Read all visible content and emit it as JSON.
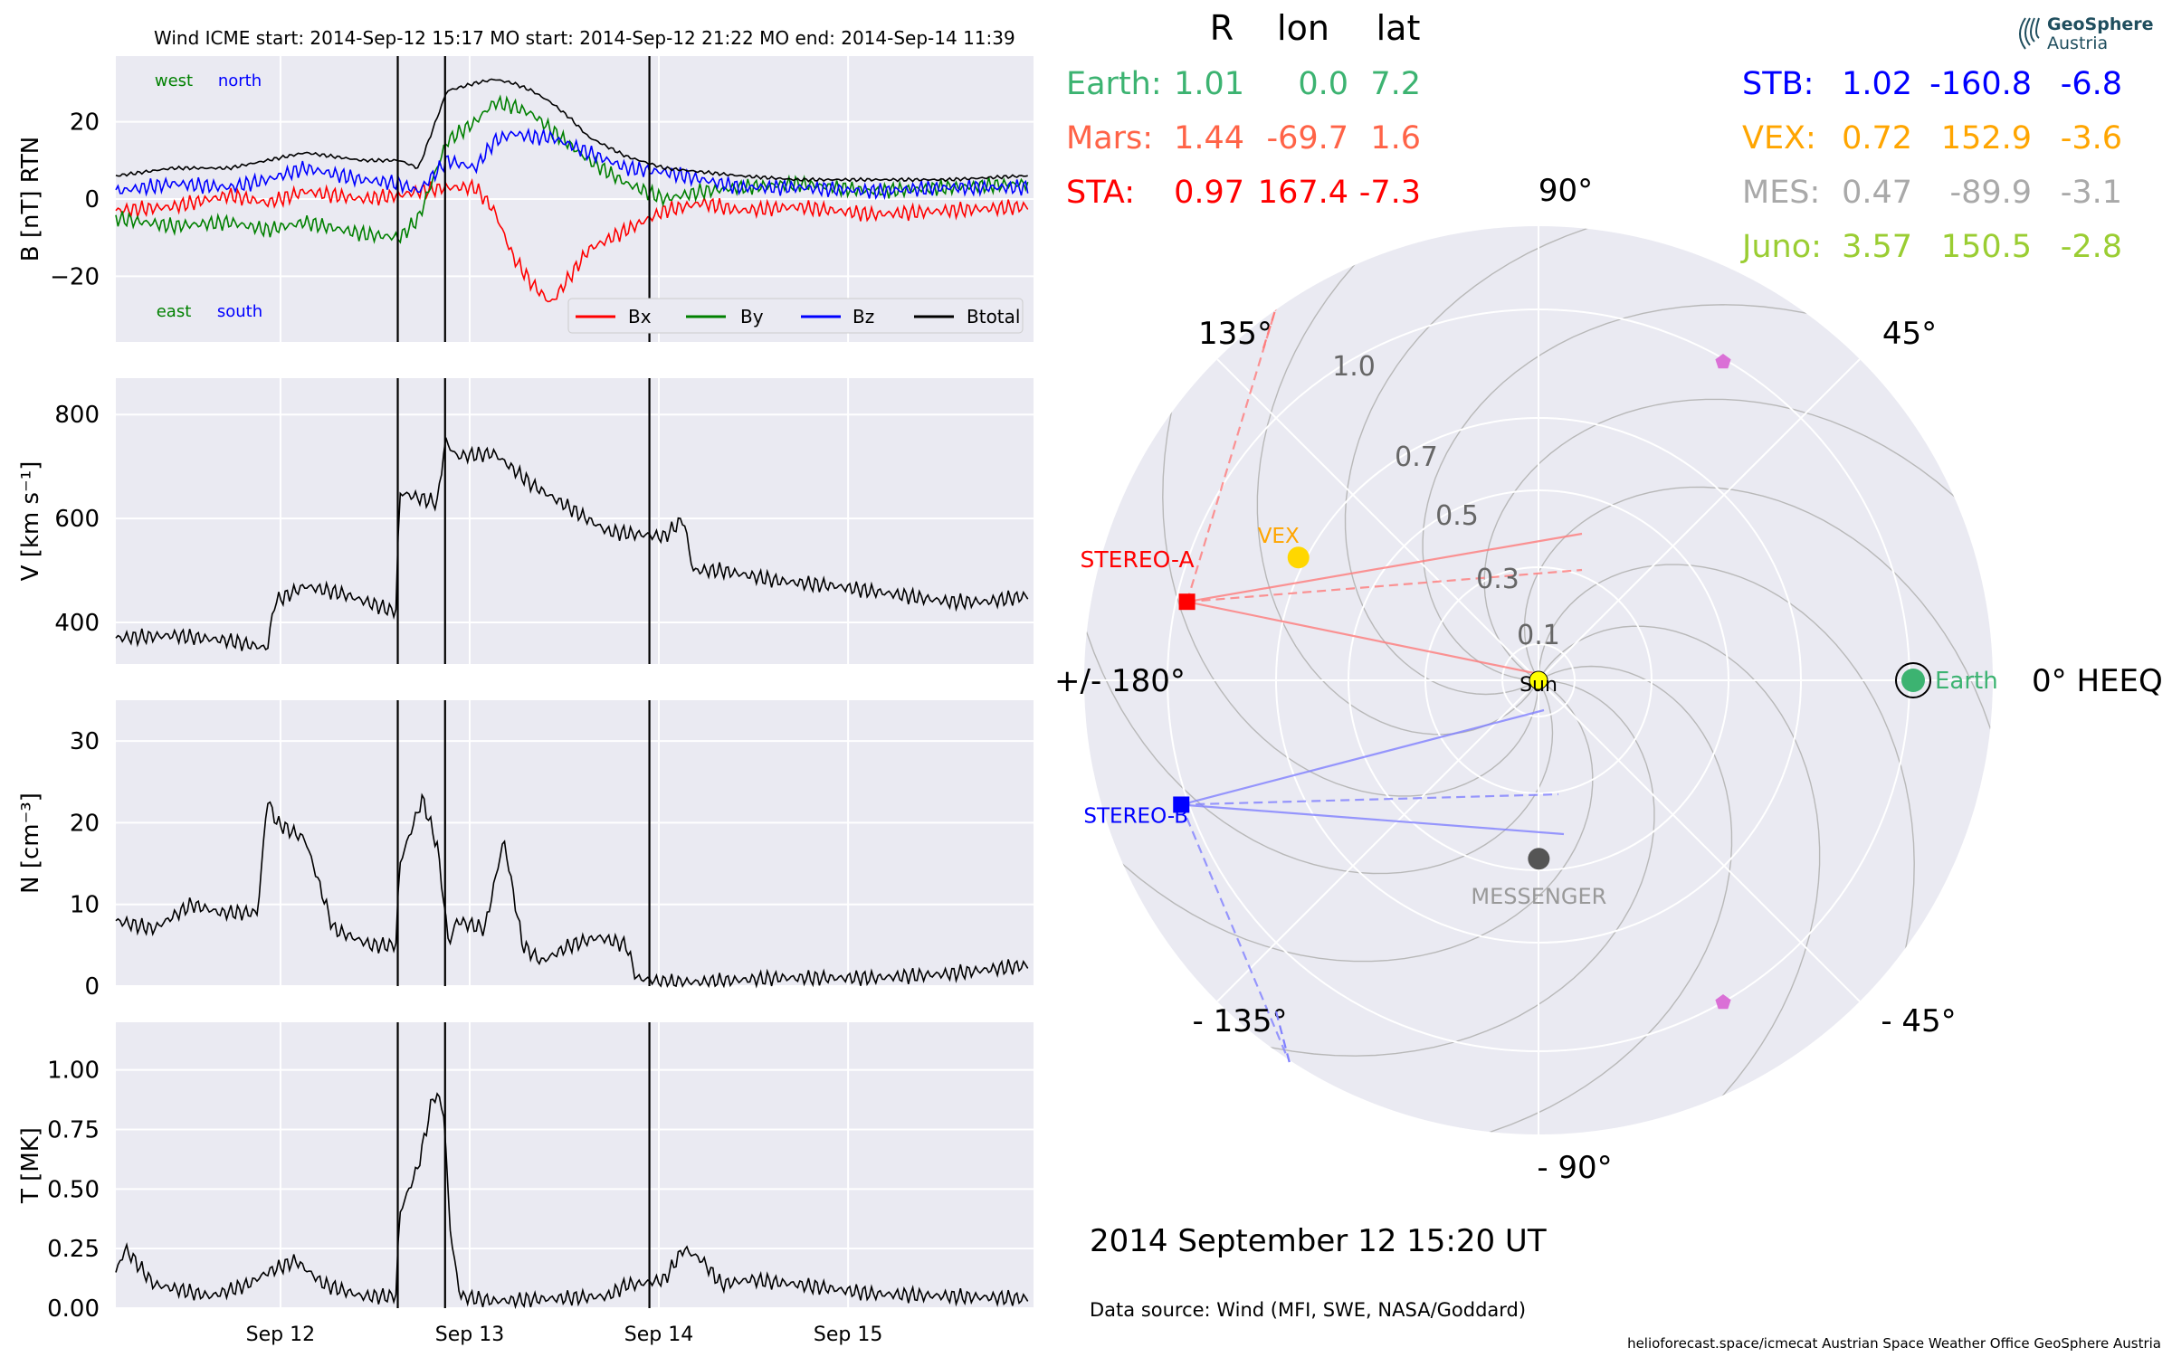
{
  "header": {
    "title": "Wind    ICME start: 2014-Sep-12 15:17   MO start: 2014-Sep-12 21:22   MO end: 2014-Sep-14 11:39"
  },
  "logo": {
    "line1": "GeoSphere",
    "line2": "Austria"
  },
  "footer": {
    "date": "2014 September 12  15:20 UT",
    "source": "Data source: Wind (MFI, SWE, NASA/Goddard)",
    "credits": "helioforecast.space/icmecat   Austrian Space Weather Office   GeoSphere Austria"
  },
  "colors": {
    "panel_bg": "#eaeaf2",
    "grid": "#ffffff",
    "bx": "#ff0000",
    "by": "#008000",
    "bz": "#0000ff",
    "earth": "#3cb371",
    "mars": "#ff6347",
    "sta": "#ff0000",
    "stb": "#0000ff",
    "vex": "#ffa500",
    "mes": "#a9a9a9",
    "juno": "#9acd32",
    "sun": "#ffff00"
  },
  "table": {
    "headers": [
      "R",
      "lon",
      "lat"
    ],
    "left": [
      {
        "name": "Earth:",
        "R": "1.01",
        "lon": "0.0",
        "lat": "7.2",
        "color": "#3cb371"
      },
      {
        "name": "Mars:",
        "R": "1.44",
        "lon": "-69.7",
        "lat": "1.6",
        "color": "#ff6347"
      },
      {
        "name": "STA:",
        "R": "0.97",
        "lon": "167.4",
        "lat": "-7.3",
        "color": "#ff0000"
      }
    ],
    "right": [
      {
        "name": "STB:",
        "R": "1.02",
        "lon": "-160.8",
        "lat": "-6.8",
        "color": "#0000ff"
      },
      {
        "name": "VEX:",
        "R": "0.72",
        "lon": "152.9",
        "lat": "-3.6",
        "color": "#ffa500"
      },
      {
        "name": "MES:",
        "R": "0.47",
        "lon": "-89.9",
        "lat": "-3.1",
        "color": "#a9a9a9"
      },
      {
        "name": "Juno:",
        "R": "3.57",
        "lon": "150.5",
        "lat": "-2.8",
        "color": "#9acd32"
      }
    ]
  },
  "chart_data": [
    {
      "type": "line",
      "ylabel": "B [nT] RTN",
      "ylim": [
        -37,
        37
      ],
      "yticks": [
        "20",
        "0",
        "−20"
      ],
      "xlim_days": [
        "2014-09-11 00:00",
        "2014-09-16 00:00"
      ],
      "xticks": [
        "Sep 12",
        "Sep 13",
        "Sep 14",
        "Sep 15"
      ],
      "event_lines": [
        "2014-09-12 15:17",
        "2014-09-12 21:22",
        "2014-09-14 11:39"
      ],
      "annotations": [
        "west",
        "north",
        "east",
        "south"
      ],
      "legend": [
        "Bx",
        "By",
        "Bz",
        "Btotal"
      ],
      "legend_position": "lower-right",
      "series": [
        {
          "name": "Bx",
          "x": [
            0,
            0.3,
            0.6,
            0.8,
            1.0,
            1.3,
            1.5,
            1.6,
            1.75,
            1.9,
            2.0,
            2.1,
            2.2,
            2.3,
            2.4,
            2.5,
            2.7,
            2.9,
            3.1,
            3.3,
            3.6,
            4.0,
            4.4,
            4.8
          ],
          "values": [
            -3,
            -2,
            1,
            -1,
            2,
            0,
            1,
            2,
            3,
            3,
            -3,
            -15,
            -22,
            -27,
            -20,
            -13,
            -8,
            -3,
            -1,
            -3,
            -2,
            -4,
            -3,
            -2
          ]
        },
        {
          "name": "By",
          "x": [
            0,
            0.3,
            0.6,
            0.8,
            1.0,
            1.3,
            1.5,
            1.6,
            1.75,
            1.9,
            2.0,
            2.1,
            2.2,
            2.3,
            2.4,
            2.5,
            2.7,
            2.9,
            3.1,
            3.3,
            3.6,
            4.0,
            4.4,
            4.8
          ],
          "values": [
            -5,
            -7,
            -6,
            -8,
            -6,
            -9,
            -10,
            -5,
            15,
            20,
            25,
            24,
            22,
            18,
            14,
            10,
            4,
            0,
            2,
            3,
            4,
            2,
            3,
            4
          ]
        },
        {
          "name": "Bz",
          "x": [
            0,
            0.3,
            0.6,
            0.8,
            1.0,
            1.3,
            1.5,
            1.6,
            1.75,
            1.9,
            2.0,
            2.1,
            2.2,
            2.3,
            2.4,
            2.5,
            2.7,
            2.9,
            3.1,
            3.3,
            3.6,
            4.0,
            4.4,
            4.8
          ],
          "values": [
            2,
            4,
            3,
            5,
            8,
            5,
            4,
            2,
            10,
            8,
            15,
            17,
            16,
            16,
            14,
            12,
            8,
            7,
            5,
            3,
            3,
            2,
            3,
            3
          ]
        },
        {
          "name": "Btotal",
          "x": [
            0,
            0.3,
            0.6,
            0.8,
            1.0,
            1.3,
            1.5,
            1.6,
            1.75,
            1.9,
            2.0,
            2.1,
            2.2,
            2.3,
            2.4,
            2.5,
            2.7,
            2.9,
            3.1,
            3.3,
            3.6,
            4.0,
            4.4,
            4.8
          ],
          "values": [
            6,
            8,
            8,
            10,
            12,
            10,
            10,
            8,
            28,
            30,
            31,
            30,
            28,
            25,
            21,
            16,
            11,
            8,
            7,
            6,
            5,
            5,
            5,
            6
          ]
        }
      ]
    },
    {
      "type": "line",
      "ylabel": "V [km s⁻¹]",
      "ylim": [
        320,
        870
      ],
      "yticks": [
        "800",
        "600",
        "400"
      ],
      "xticks": [
        "Sep 12",
        "Sep 13",
        "Sep 14",
        "Sep 15"
      ],
      "series": [
        {
          "name": "",
          "x": [
            0,
            0.3,
            0.6,
            0.8,
            0.84,
            1.0,
            1.2,
            1.4,
            1.48,
            1.5,
            1.7,
            1.74,
            1.8,
            2.0,
            2.2,
            2.4,
            2.6,
            2.9,
            3.0,
            3.05,
            3.2,
            3.5,
            3.8,
            4.1,
            4.4,
            4.6,
            4.8
          ],
          "values": [
            370,
            375,
            365,
            350,
            440,
            470,
            455,
            430,
            420,
            650,
            630,
            750,
            720,
            725,
            665,
            620,
            575,
            565,
            600,
            500,
            500,
            480,
            470,
            455,
            440,
            440,
            450
          ]
        }
      ]
    },
    {
      "type": "line",
      "ylabel": "N [cm⁻³]",
      "ylim": [
        0,
        35
      ],
      "yticks": [
        "30",
        "20",
        "10",
        "0"
      ],
      "xticks": [
        "Sep 12",
        "Sep 13",
        "Sep 14",
        "Sep 15"
      ],
      "series": [
        {
          "name": "",
          "x": [
            0,
            0.2,
            0.4,
            0.55,
            0.75,
            0.8,
            0.85,
            1.0,
            1.15,
            1.25,
            1.35,
            1.48,
            1.5,
            1.62,
            1.7,
            1.76,
            1.8,
            1.95,
            2.05,
            2.15,
            2.25,
            2.4,
            2.55,
            2.7,
            2.75,
            2.9,
            3.1,
            3.5,
            4.0,
            4.4,
            4.8
          ],
          "values": [
            8,
            7,
            10,
            9,
            9,
            23,
            20,
            18,
            7,
            6,
            5,
            5,
            15,
            23,
            17,
            5,
            8,
            7,
            18,
            5,
            3,
            5,
            6,
            5,
            1,
            0.5,
            0.5,
            1,
            1,
            1.5,
            2.5
          ]
        }
      ]
    },
    {
      "type": "line",
      "ylabel": "T [MK]",
      "ylim": [
        0,
        1.2
      ],
      "yticks": [
        "1.00",
        "0.75",
        "0.50",
        "0.25",
        "0.00"
      ],
      "xticks": [
        "Sep 12",
        "Sep 13",
        "Sep 14",
        "Sep 15"
      ],
      "series": [
        {
          "name": "",
          "x": [
            0,
            0.05,
            0.2,
            0.5,
            0.7,
            0.8,
            0.95,
            1.1,
            1.3,
            1.48,
            1.5,
            1.6,
            1.68,
            1.73,
            1.77,
            1.82,
            2.0,
            2.3,
            2.6,
            2.7,
            2.75,
            2.9,
            3.0,
            3.1,
            3.2,
            3.35,
            3.6,
            4.0,
            4.4,
            4.8
          ],
          "values": [
            0.15,
            0.25,
            0.1,
            0.05,
            0.1,
            0.15,
            0.2,
            0.1,
            0.05,
            0.05,
            0.4,
            0.6,
            0.9,
            0.85,
            0.3,
            0.05,
            0.03,
            0.04,
            0.05,
            0.1,
            0.1,
            0.12,
            0.25,
            0.2,
            0.1,
            0.12,
            0.1,
            0.06,
            0.05,
            0.04
          ]
        }
      ]
    },
    {
      "type": "scatter",
      "title": "",
      "projection": "polar",
      "angular_labels": [
        "90°",
        "45°",
        "0° HEEQ",
        "- 45°",
        "- 90°",
        "- 135°",
        "+/- 180°",
        "135°"
      ],
      "radial_labels": [
        "0.1",
        "0.3",
        "0.5",
        "0.7",
        "1.0"
      ],
      "points": [
        {
          "name": "Earth",
          "r": 1.01,
          "lon": 0.0,
          "color": "#3cb371"
        },
        {
          "name": "STEREO-A",
          "r": 0.97,
          "lon": 167.4,
          "color": "#ff0000"
        },
        {
          "name": "STEREO-B",
          "r": 1.02,
          "lon": -160.8,
          "color": "#0000ff"
        },
        {
          "name": "VEX",
          "r": 0.72,
          "lon": 152.9,
          "color": "#ffd700"
        },
        {
          "name": "MESSENGER",
          "r": 0.47,
          "lon": -89.9,
          "color": "#555555"
        },
        {
          "name": "Sun",
          "r": 0,
          "lon": 0,
          "color": "#ffff00"
        }
      ]
    }
  ]
}
